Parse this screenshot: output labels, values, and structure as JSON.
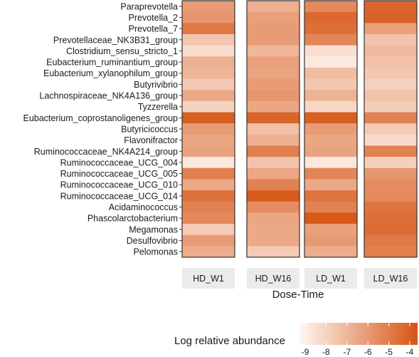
{
  "chart_data": {
    "type": "heatmap",
    "x_title": "Dose-Time",
    "facets": [
      "HD_W1",
      "HD_W16",
      "LD_W1",
      "LD_W16"
    ],
    "rows": [
      "Paraprevotella",
      "Prevotella_2",
      "Prevotella_7",
      "Prevotellaceae_NK3B31_group",
      "Clostridium_sensu_stricto_1",
      "Eubacterium_ruminantium_group",
      "Eubacterium_xylanophilum_group",
      "Butyrivibrio",
      "Lachnospiraceae_NK4A136_group",
      "Tyzzerella",
      "Eubacterium_coprostanoligenes_group",
      "Butyricicoccus",
      "Flavonifractor",
      "Ruminococcaceae_NK4A214_group",
      "Ruminococcaceae_UCG_004",
      "Ruminococcaceae_UCG_005",
      "Ruminococcaceae_UCG_010",
      "Ruminococcaceae_UCG_014",
      "Acidaminococcus",
      "Phascolarctobacterium",
      "Megamonas",
      "Desulfovibrio",
      "Pelomonas"
    ],
    "values": [
      [
        -6.2,
        -6.8,
        -5.6,
        -4.5
      ],
      [
        -6.0,
        -6.3,
        -4.6,
        -4.4
      ],
      [
        -5.1,
        -6.2,
        -4.8,
        -6.3
      ],
      [
        -7.5,
        -6.2,
        -5.5,
        -7.4
      ],
      [
        -8.2,
        -7.0,
        -8.3,
        -7.1
      ],
      [
        -6.8,
        -6.3,
        -8.6,
        -7.3
      ],
      [
        -7.0,
        -6.4,
        -7.2,
        -7.5
      ],
      [
        -7.6,
        -6.2,
        -7.5,
        -7.8
      ],
      [
        -6.6,
        -6.0,
        -6.9,
        -7.4
      ],
      [
        -7.9,
        -6.5,
        -8.0,
        -7.7
      ],
      [
        -4.3,
        -4.5,
        -4.3,
        -5.4
      ],
      [
        -6.2,
        -7.3,
        -6.2,
        -7.6
      ],
      [
        -6.5,
        -6.8,
        -6.5,
        -8.1
      ],
      [
        -6.4,
        -5.3,
        -6.4,
        -5.4
      ],
      [
        -8.5,
        -7.4,
        -8.5,
        -7.8
      ],
      [
        -5.3,
        -6.5,
        -5.5,
        -6.0
      ],
      [
        -6.6,
        -5.4,
        -6.6,
        -5.7
      ],
      [
        -4.9,
        -4.2,
        -5.0,
        -5.6
      ],
      [
        -5.4,
        -5.7,
        -5.4,
        -5.0
      ],
      [
        -5.6,
        -6.5,
        -4.1,
        -4.8
      ],
      [
        -7.6,
        -6.6,
        -6.3,
        -4.7
      ],
      [
        -6.2,
        -6.6,
        -6.1,
        -5.1
      ],
      [
        -6.7,
        -7.6,
        -6.7,
        -5.3
      ]
    ],
    "legend_title": "Log relative abundance",
    "color_range": [
      -9,
      -4
    ],
    "legend_ticks": [
      "-9",
      "-8",
      "-7",
      "-6",
      "-5",
      "-4"
    ],
    "colors": {
      "low": "#fff7f2",
      "high": "#d65515",
      "strip": "#ebebeb"
    },
    "legend_position": "bottom-right",
    "grid": false
  }
}
